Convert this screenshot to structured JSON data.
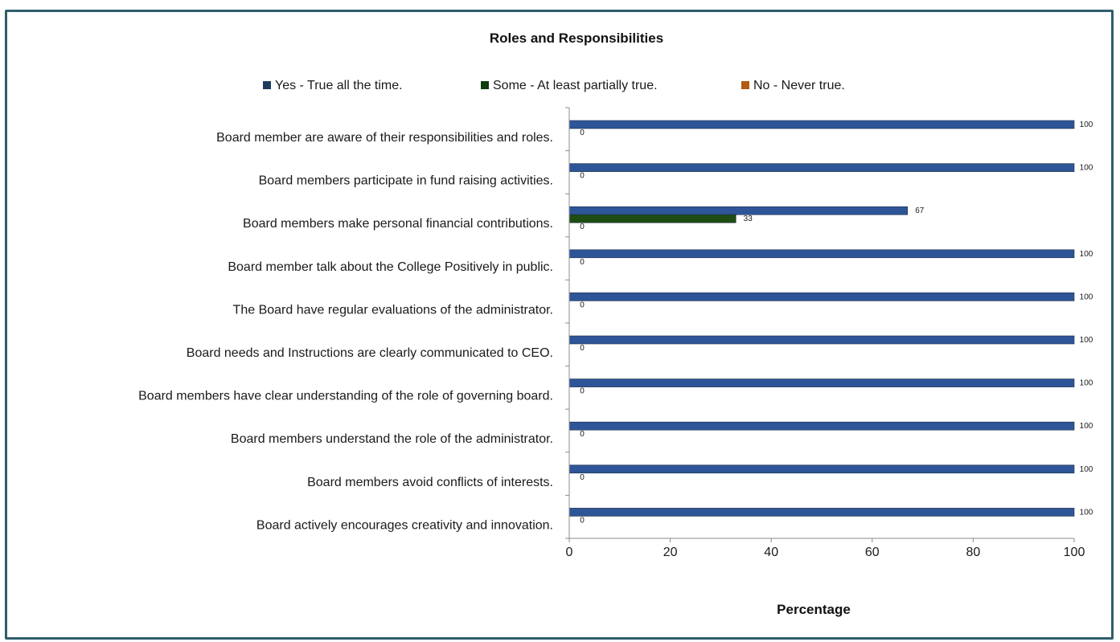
{
  "chart_data": {
    "type": "bar",
    "orientation": "horizontal",
    "title": "Roles and Responsibilities",
    "xlabel": "Percentage",
    "ylabel": "",
    "xlim": [
      0,
      100
    ],
    "xticks": [
      "0",
      "20",
      "40",
      "60",
      "80",
      "100"
    ],
    "grid": false,
    "legend_position": "top",
    "categories": [
      "Board member are aware of their responsibilities and roles.",
      "Board members participate in fund raising activities.",
      "Board members make personal financial contributions.",
      "Board member talk about the College Positively in public.",
      "The Board have regular evaluations of the administrator.",
      "Board needs and Instructions are clearly communicated to CEO.",
      "Board members have clear understanding of the role of governing board.",
      "Board members understand the role of the administrator.",
      "Board members avoid conflicts of interests.",
      "Board actively encourages creativity and innovation."
    ],
    "series": [
      {
        "name": "Yes - True all the time.",
        "color": "#2e5597",
        "values": [
          100,
          100,
          67,
          100,
          100,
          100,
          100,
          100,
          100,
          100
        ],
        "labels": [
          "100",
          "100",
          "67",
          "100",
          "100",
          "100",
          "100",
          "100",
          "100",
          "100"
        ]
      },
      {
        "name": "Some - At least partially true.",
        "color": "#1e4d12",
        "values": [
          0,
          0,
          33,
          0,
          0,
          0,
          0,
          0,
          0,
          0
        ],
        "labels": [
          "0",
          "0",
          "33",
          "0",
          "0",
          "0",
          "0",
          "0",
          "0",
          "0"
        ]
      },
      {
        "name": "No - Never true.",
        "color": "#b35a14",
        "values": [
          0,
          0,
          0,
          0,
          0,
          0,
          0,
          0,
          0,
          0
        ],
        "labels": [
          "",
          "",
          "0",
          "",
          "",
          "",
          "",
          "",
          "",
          ""
        ]
      }
    ],
    "legend_swatch_colors": [
      "#1f3a5f",
      "#0f3b0f",
      "#b35a14"
    ]
  }
}
